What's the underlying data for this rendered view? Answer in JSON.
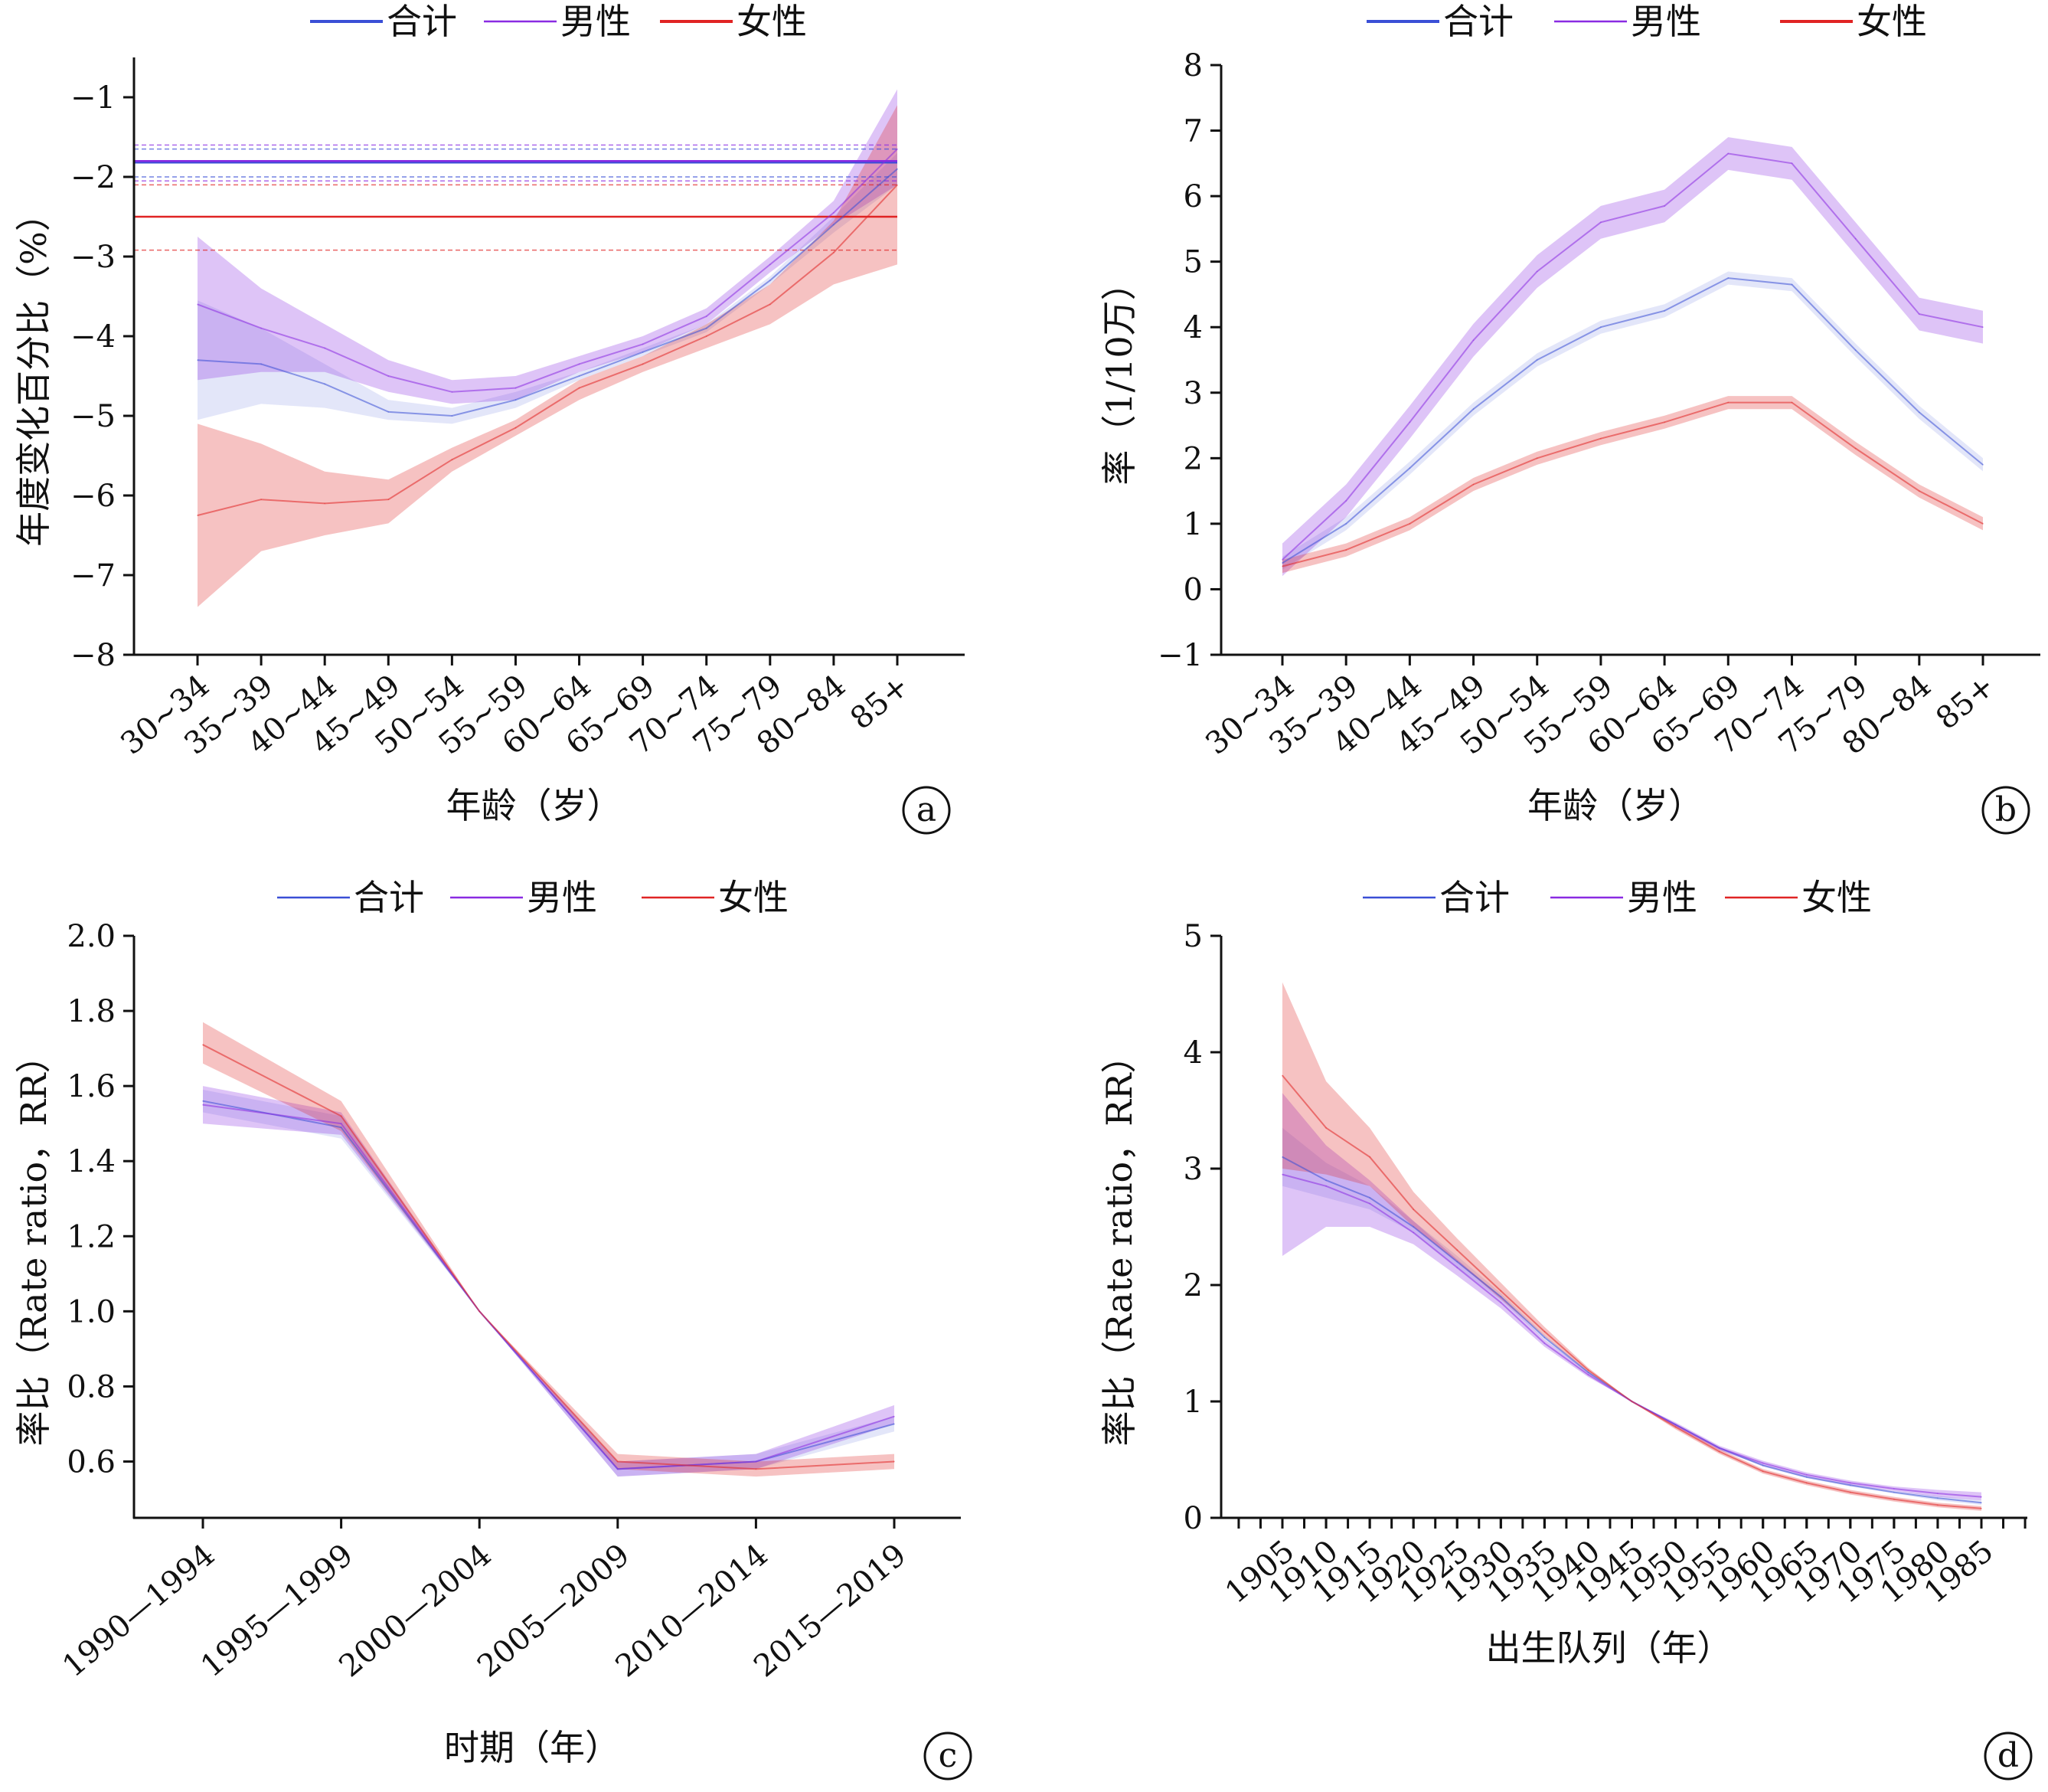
{
  "legend": {
    "total": "合计",
    "male": "男性",
    "female": "女性"
  },
  "colors": {
    "total": "#3a4fd6",
    "male": "#8a2be2",
    "female": "#e02424"
  },
  "chart_data": [
    {
      "panel": "a",
      "type": "line",
      "xlabel": "年龄（岁）",
      "ylabel": "年度变化百分比（%）",
      "categories": [
        "30~34",
        "35~39",
        "40~44",
        "45~49",
        "50~54",
        "55~59",
        "60~64",
        "65~69",
        "70~74",
        "75~79",
        "80~84",
        "85+"
      ],
      "ylim": [
        -8,
        -0.5
      ],
      "yticks": [
        -8,
        -7,
        -6,
        -5,
        -4,
        -3,
        -2,
        -1
      ],
      "ytick_labels": [
        "−8",
        "−7",
        "−6",
        "−5",
        "−4",
        "−3",
        "−2",
        "−1"
      ],
      "grid": false,
      "legend_position": "top-center",
      "series": [
        {
          "key": "total",
          "values": [
            -4.3,
            -4.35,
            -4.6,
            -4.95,
            -5.0,
            -4.8,
            -4.5,
            -4.2,
            -3.9,
            -3.3,
            -2.6,
            -1.9
          ],
          "lower": [
            -5.05,
            -4.85,
            -4.9,
            -5.05,
            -5.1,
            -4.9,
            -4.55,
            -4.25,
            -3.95,
            -3.35,
            -2.7,
            -2.1
          ],
          "upper": [
            -3.55,
            -3.9,
            -4.35,
            -4.8,
            -4.9,
            -4.7,
            -4.45,
            -4.15,
            -3.85,
            -3.25,
            -2.5,
            -1.7
          ]
        },
        {
          "key": "male",
          "values": [
            -3.6,
            -3.9,
            -4.15,
            -4.5,
            -4.7,
            -4.65,
            -4.35,
            -4.1,
            -3.75,
            -3.1,
            -2.45,
            -1.65
          ],
          "lower": [
            -4.55,
            -4.45,
            -4.45,
            -4.7,
            -4.85,
            -4.8,
            -4.45,
            -4.2,
            -3.85,
            -3.2,
            -2.6,
            -2.1
          ],
          "upper": [
            -2.75,
            -3.4,
            -3.85,
            -4.3,
            -4.55,
            -4.5,
            -4.25,
            -4.0,
            -3.65,
            -3.0,
            -2.3,
            -0.9
          ]
        },
        {
          "key": "female",
          "values": [
            -6.25,
            -6.05,
            -6.1,
            -6.05,
            -5.55,
            -5.15,
            -4.65,
            -4.35,
            -4.0,
            -3.6,
            -2.95,
            -2.1
          ],
          "lower": [
            -7.4,
            -6.7,
            -6.5,
            -6.35,
            -5.7,
            -5.25,
            -4.8,
            -4.45,
            -4.15,
            -3.85,
            -3.35,
            -3.1
          ],
          "upper": [
            -5.1,
            -5.35,
            -5.7,
            -5.8,
            -5.4,
            -5.05,
            -4.55,
            -4.25,
            -3.85,
            -3.35,
            -2.55,
            -1.1
          ]
        }
      ],
      "hlines": [
        {
          "key": "total",
          "value": -1.82,
          "lower": -2.0,
          "upper": -1.65
        },
        {
          "key": "male",
          "value": -1.8,
          "lower": -2.05,
          "upper": -1.6
        },
        {
          "key": "female",
          "value": -2.5,
          "lower": -2.92,
          "upper": -2.1
        }
      ]
    },
    {
      "panel": "b",
      "type": "line",
      "xlabel": "年龄（岁）",
      "ylabel": "率（1/10万）",
      "categories": [
        "30~34",
        "35~39",
        "40~44",
        "45~49",
        "50~54",
        "55~59",
        "60~64",
        "65~69",
        "70~74",
        "75~79",
        "80~84",
        "85+"
      ],
      "ylim": [
        -1,
        8
      ],
      "yticks": [
        -1,
        0,
        1,
        2,
        3,
        4,
        5,
        6,
        7,
        8
      ],
      "ytick_labels": [
        "−1",
        "0",
        "1",
        "2",
        "3",
        "4",
        "5",
        "6",
        "7",
        "8"
      ],
      "grid": false,
      "legend_position": "top-center",
      "series": [
        {
          "key": "total",
          "values": [
            0.4,
            1.0,
            1.85,
            2.75,
            3.5,
            4.0,
            4.25,
            4.75,
            4.65,
            3.65,
            2.7,
            1.9
          ],
          "band": 0.1
        },
        {
          "key": "male",
          "values": [
            0.45,
            1.35,
            2.55,
            3.8,
            4.85,
            5.6,
            5.85,
            6.65,
            6.5,
            5.35,
            4.2,
            4.0
          ],
          "band": 0.25
        },
        {
          "key": "female",
          "values": [
            0.35,
            0.6,
            1.0,
            1.6,
            2.0,
            2.3,
            2.55,
            2.85,
            2.85,
            2.15,
            1.5,
            1.0
          ],
          "band": 0.1
        }
      ]
    },
    {
      "panel": "c",
      "type": "line",
      "xlabel": "时期（年）",
      "ylabel": "率比（Rate ratio，RR）",
      "categories": [
        "1990—1994",
        "1995—1999",
        "2000—2004",
        "2005—2009",
        "2010—2014",
        "2015—2019"
      ],
      "ylim": [
        0.45,
        2.0
      ],
      "yticks": [
        0.6,
        0.8,
        1.0,
        1.2,
        1.4,
        1.6,
        1.8,
        2.0
      ],
      "ytick_labels": [
        "0.6",
        "0.8",
        "1.0",
        "1.2",
        "1.4",
        "1.6",
        "1.8",
        "2.0"
      ],
      "grid": false,
      "legend_position": "top-center",
      "series": [
        {
          "key": "total",
          "values": [
            1.56,
            1.49,
            1.0,
            0.58,
            0.6,
            0.7
          ],
          "lower": [
            1.53,
            1.46,
            1.0,
            0.56,
            0.58,
            0.68
          ],
          "upper": [
            1.59,
            1.52,
            1.0,
            0.6,
            0.62,
            0.72
          ]
        },
        {
          "key": "male",
          "values": [
            1.55,
            1.5,
            1.0,
            0.58,
            0.6,
            0.72
          ],
          "lower": [
            1.5,
            1.47,
            1.0,
            0.56,
            0.58,
            0.7
          ],
          "upper": [
            1.6,
            1.53,
            1.0,
            0.6,
            0.62,
            0.75
          ]
        },
        {
          "key": "female",
          "values": [
            1.71,
            1.52,
            1.0,
            0.6,
            0.58,
            0.6
          ],
          "lower": [
            1.66,
            1.48,
            1.0,
            0.58,
            0.56,
            0.58
          ],
          "upper": [
            1.77,
            1.56,
            1.0,
            0.62,
            0.6,
            0.62
          ]
        }
      ]
    },
    {
      "panel": "d",
      "type": "line",
      "xlabel": "出生队列（年）",
      "ylabel": "率比（Rate ratio，RR）",
      "categories": [
        "1905",
        "1910",
        "1915",
        "1920",
        "1925",
        "1930",
        "1935",
        "1940",
        "1945",
        "1950",
        "1955",
        "1960",
        "1965",
        "1970",
        "1975",
        "1980",
        "1985"
      ],
      "ylim": [
        0,
        5
      ],
      "yticks": [
        0,
        1,
        2,
        3,
        4,
        5
      ],
      "ytick_labels": [
        "0",
        "1",
        "2",
        "3",
        "4",
        "5"
      ],
      "grid": false,
      "legend_position": "top-center",
      "series": [
        {
          "key": "total",
          "values": [
            3.1,
            2.9,
            2.75,
            2.5,
            2.2,
            1.9,
            1.55,
            1.25,
            1.0,
            0.8,
            0.6,
            0.45,
            0.35,
            0.28,
            0.22,
            0.17,
            0.13
          ],
          "lower": [
            2.85,
            2.75,
            2.65,
            2.45,
            2.15,
            1.87,
            1.53,
            1.24,
            1.0,
            0.79,
            0.59,
            0.44,
            0.34,
            0.27,
            0.21,
            0.15,
            0.11
          ],
          "upper": [
            3.35,
            3.05,
            2.85,
            2.55,
            2.25,
            1.93,
            1.57,
            1.26,
            1.0,
            0.81,
            0.61,
            0.46,
            0.36,
            0.29,
            0.23,
            0.19,
            0.15
          ]
        },
        {
          "key": "male",
          "values": [
            2.95,
            2.85,
            2.7,
            2.45,
            2.15,
            1.85,
            1.5,
            1.23,
            1.0,
            0.8,
            0.6,
            0.47,
            0.37,
            0.3,
            0.25,
            0.21,
            0.18
          ],
          "lower": [
            2.25,
            2.5,
            2.5,
            2.35,
            2.08,
            1.8,
            1.47,
            1.21,
            1.0,
            0.78,
            0.58,
            0.45,
            0.35,
            0.28,
            0.23,
            0.18,
            0.15
          ],
          "upper": [
            3.65,
            3.2,
            2.9,
            2.55,
            2.22,
            1.9,
            1.53,
            1.25,
            1.0,
            0.82,
            0.62,
            0.49,
            0.39,
            0.32,
            0.27,
            0.24,
            0.22
          ]
        },
        {
          "key": "female",
          "values": [
            3.8,
            3.35,
            3.1,
            2.65,
            2.3,
            1.95,
            1.6,
            1.27,
            1.0,
            0.78,
            0.57,
            0.4,
            0.3,
            0.22,
            0.16,
            0.11,
            0.08
          ],
          "lower": [
            3.0,
            2.95,
            2.85,
            2.5,
            2.2,
            1.88,
            1.56,
            1.25,
            1.0,
            0.76,
            0.55,
            0.38,
            0.28,
            0.2,
            0.14,
            0.09,
            0.06
          ],
          "upper": [
            4.6,
            3.75,
            3.35,
            2.8,
            2.4,
            2.02,
            1.64,
            1.29,
            1.0,
            0.8,
            0.59,
            0.42,
            0.32,
            0.24,
            0.18,
            0.13,
            0.1
          ]
        }
      ]
    }
  ]
}
